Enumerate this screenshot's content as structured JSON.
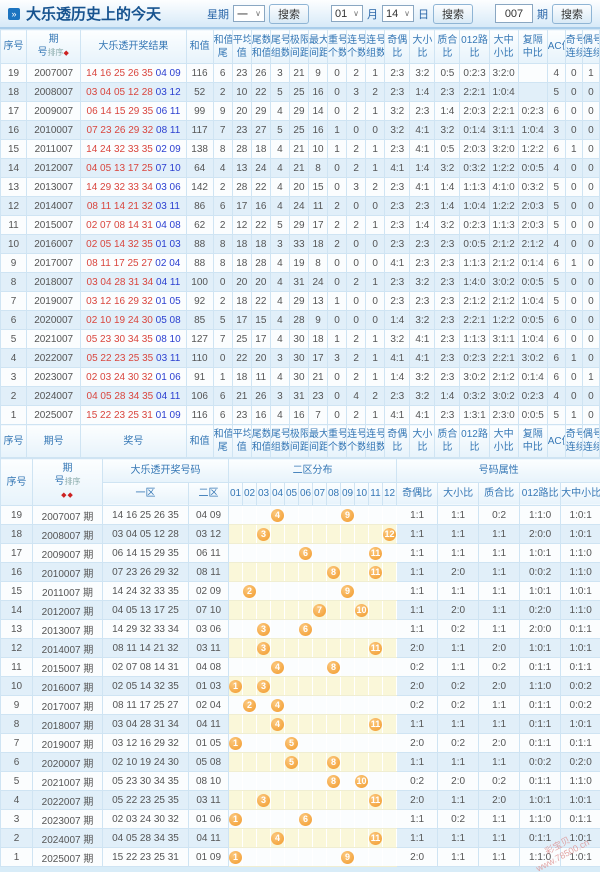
{
  "page": {
    "title": "大乐透历史上的今天",
    "icon": "»"
  },
  "toolbar": {
    "week_label": "星期",
    "week_value": "一",
    "month_value": "01",
    "month_label": "月",
    "day_value": "14",
    "day_label": "日",
    "period_value": "007",
    "period_label": "期",
    "search_label": "搜索",
    "arrow": "∨"
  },
  "table1": {
    "sort_label": "排序",
    "sort_marks": "◆",
    "columns": [
      [
        "序号",
        ""
      ],
      [
        "期",
        "号"
      ],
      [
        "大乐透开奖结果",
        ""
      ],
      [
        "和值",
        ""
      ],
      [
        "和值",
        "尾"
      ],
      [
        "平均",
        "值"
      ],
      [
        "尾数",
        "和值"
      ],
      [
        "尾号",
        "组数"
      ],
      [
        "极限",
        "间距"
      ],
      [
        "最大",
        "间距"
      ],
      [
        "重号",
        "个数"
      ],
      [
        "连号",
        "个数"
      ],
      [
        "连号",
        "组数"
      ],
      [
        "奇偶",
        "比"
      ],
      [
        "大小",
        "比"
      ],
      [
        "质合",
        "比"
      ],
      [
        "012路",
        "比"
      ],
      [
        "大中",
        "小比"
      ],
      [
        "复隔",
        "中比"
      ],
      [
        "AC值",
        ""
      ],
      [
        "奇号",
        "连续"
      ],
      [
        "偶号",
        "连续"
      ]
    ],
    "footer_period_label": "期号",
    "footer_result_label": "奖号",
    "rows": [
      {
        "seq": "19",
        "period": "2007007",
        "front": "14 16 25 26 35",
        "back": "04 09",
        "vals": [
          "116",
          "6",
          "23",
          "26",
          "3",
          "21",
          "9",
          "0",
          "2",
          "1",
          "2:3",
          "3:2",
          "0:5",
          "0:2:3",
          "3:2:0",
          "",
          "4",
          "0",
          "1"
        ]
      },
      {
        "seq": "18",
        "period": "2008007",
        "front": "03 04 05 12 28",
        "back": "03 12",
        "vals": [
          "52",
          "2",
          "10",
          "22",
          "5",
          "25",
          "16",
          "0",
          "3",
          "2",
          "2:3",
          "1:4",
          "2:3",
          "2:2:1",
          "1:0:4",
          "",
          "5",
          "0",
          "0"
        ]
      },
      {
        "seq": "17",
        "period": "2009007",
        "front": "06 14 15 29 35",
        "back": "06 11",
        "vals": [
          "99",
          "9",
          "20",
          "29",
          "4",
          "29",
          "14",
          "0",
          "2",
          "1",
          "3:2",
          "2:3",
          "1:4",
          "2:0:3",
          "2:2:1",
          "0:2:3",
          "6",
          "0",
          "0"
        ]
      },
      {
        "seq": "16",
        "period": "2010007",
        "front": "07 23 26 29 32",
        "back": "08 11",
        "vals": [
          "117",
          "7",
          "23",
          "27",
          "5",
          "25",
          "16",
          "1",
          "0",
          "0",
          "3:2",
          "4:1",
          "3:2",
          "0:1:4",
          "3:1:1",
          "1:0:4",
          "3",
          "0",
          "0"
        ]
      },
      {
        "seq": "15",
        "period": "2011007",
        "front": "14 24 32 33 35",
        "back": "02 09",
        "vals": [
          "138",
          "8",
          "28",
          "18",
          "4",
          "21",
          "10",
          "1",
          "2",
          "1",
          "2:3",
          "4:1",
          "0:5",
          "2:0:3",
          "3:2:0",
          "1:2:2",
          "6",
          "1",
          "0"
        ]
      },
      {
        "seq": "14",
        "period": "2012007",
        "front": "04 05 13 17 25",
        "back": "07 10",
        "vals": [
          "64",
          "4",
          "13",
          "24",
          "4",
          "21",
          "8",
          "0",
          "2",
          "1",
          "4:1",
          "1:4",
          "3:2",
          "0:3:2",
          "1:2:2",
          "0:0:5",
          "4",
          "0",
          "0"
        ]
      },
      {
        "seq": "13",
        "period": "2013007",
        "front": "14 29 32 33 34",
        "back": "03 06",
        "vals": [
          "142",
          "2",
          "28",
          "22",
          "4",
          "20",
          "15",
          "0",
          "3",
          "2",
          "2:3",
          "4:1",
          "1:4",
          "1:1:3",
          "4:1:0",
          "0:3:2",
          "5",
          "0",
          "0"
        ]
      },
      {
        "seq": "12",
        "period": "2014007",
        "front": "08 11 14 21 32",
        "back": "03 11",
        "vals": [
          "86",
          "6",
          "17",
          "16",
          "4",
          "24",
          "11",
          "2",
          "0",
          "0",
          "2:3",
          "2:3",
          "1:4",
          "1:0:4",
          "1:2:2",
          "2:0:3",
          "5",
          "0",
          "0"
        ]
      },
      {
        "seq": "11",
        "period": "2015007",
        "front": "02 07 08 14 31",
        "back": "04 08",
        "vals": [
          "62",
          "2",
          "12",
          "22",
          "5",
          "29",
          "17",
          "2",
          "2",
          "1",
          "2:3",
          "1:4",
          "3:2",
          "0:2:3",
          "1:1:3",
          "2:0:3",
          "5",
          "0",
          "0"
        ]
      },
      {
        "seq": "10",
        "period": "2016007",
        "front": "02 05 14 32 35",
        "back": "01 03",
        "vals": [
          "88",
          "8",
          "18",
          "18",
          "3",
          "33",
          "18",
          "2",
          "0",
          "0",
          "2:3",
          "2:3",
          "2:3",
          "0:0:5",
          "2:1:2",
          "2:1:2",
          "4",
          "0",
          "0"
        ]
      },
      {
        "seq": "9",
        "period": "2017007",
        "front": "08 11 17 25 27",
        "back": "02 04",
        "vals": [
          "88",
          "8",
          "18",
          "28",
          "4",
          "19",
          "8",
          "0",
          "0",
          "0",
          "4:1",
          "2:3",
          "2:3",
          "1:1:3",
          "2:1:2",
          "0:1:4",
          "6",
          "1",
          "0"
        ]
      },
      {
        "seq": "8",
        "period": "2018007",
        "front": "03 04 28 31 34",
        "back": "04 11",
        "vals": [
          "100",
          "0",
          "20",
          "20",
          "4",
          "31",
          "24",
          "0",
          "2",
          "1",
          "2:3",
          "3:2",
          "2:3",
          "1:4:0",
          "3:0:2",
          "0:0:5",
          "5",
          "0",
          "0"
        ]
      },
      {
        "seq": "7",
        "period": "2019007",
        "front": "03 12 16 29 32",
        "back": "01 05",
        "vals": [
          "92",
          "2",
          "18",
          "22",
          "4",
          "29",
          "13",
          "1",
          "0",
          "0",
          "2:3",
          "2:3",
          "2:3",
          "2:1:2",
          "2:1:2",
          "1:0:4",
          "5",
          "0",
          "0"
        ]
      },
      {
        "seq": "6",
        "period": "2020007",
        "front": "02 10 19 24 30",
        "back": "05 08",
        "vals": [
          "85",
          "5",
          "17",
          "15",
          "4",
          "28",
          "9",
          "0",
          "0",
          "0",
          "1:4",
          "3:2",
          "2:3",
          "2:2:1",
          "1:2:2",
          "0:0:5",
          "6",
          "0",
          "0"
        ]
      },
      {
        "seq": "5",
        "period": "2021007",
        "front": "05 23 30 34 35",
        "back": "08 10",
        "vals": [
          "127",
          "7",
          "25",
          "17",
          "4",
          "30",
          "18",
          "1",
          "2",
          "1",
          "3:2",
          "4:1",
          "2:3",
          "1:1:3",
          "3:1:1",
          "1:0:4",
          "6",
          "0",
          "0"
        ]
      },
      {
        "seq": "4",
        "period": "2022007",
        "front": "05 22 23 25 35",
        "back": "03 11",
        "vals": [
          "110",
          "0",
          "22",
          "20",
          "3",
          "30",
          "17",
          "3",
          "2",
          "1",
          "4:1",
          "4:1",
          "2:3",
          "0:2:3",
          "2:2:1",
          "3:0:2",
          "6",
          "1",
          "0"
        ]
      },
      {
        "seq": "3",
        "period": "2023007",
        "front": "02 03 24 30 32",
        "back": "01 06",
        "vals": [
          "91",
          "1",
          "18",
          "11",
          "4",
          "30",
          "21",
          "0",
          "2",
          "1",
          "1:4",
          "3:2",
          "2:3",
          "3:0:2",
          "2:1:2",
          "0:1:4",
          "6",
          "0",
          "1"
        ]
      },
      {
        "seq": "2",
        "period": "2024007",
        "front": "04 05 28 34 35",
        "back": "04 11",
        "vals": [
          "106",
          "6",
          "21",
          "26",
          "3",
          "31",
          "23",
          "0",
          "4",
          "2",
          "2:3",
          "3:2",
          "1:4",
          "0:3:2",
          "3:0:2",
          "0:2:3",
          "4",
          "0",
          "0"
        ]
      },
      {
        "seq": "1",
        "period": "2025007",
        "front": "15 22 23 25 31",
        "back": "01 09",
        "vals": [
          "116",
          "6",
          "23",
          "16",
          "4",
          "16",
          "7",
          "0",
          "2",
          "1",
          "4:1",
          "4:1",
          "2:3",
          "1:3:1",
          "2:3:0",
          "0:0:5",
          "5",
          "1",
          "0"
        ]
      }
    ]
  },
  "table2": {
    "sort_label": "排序",
    "sort_marks": "◆◆",
    "seq_label": "序号",
    "period_l1": "期",
    "period_l2": "号",
    "group_result": "大乐透开奖号码",
    "group_dist": "二区分布",
    "group_attrs": "号码属性",
    "zone1_label": "一区",
    "zone2_label": "二区",
    "dist_cols": [
      "01",
      "02",
      "03",
      "04",
      "05",
      "06",
      "07",
      "08",
      "09",
      "10",
      "11",
      "12"
    ],
    "attr_cols": [
      "奇偶比",
      "大小比",
      "质合比",
      "012路比",
      "大中小比"
    ],
    "rows": [
      {
        "seq": "19",
        "period": "2007007 期",
        "zone1": "14 16 25 26 35",
        "zone2": "04 09",
        "balls": [
          4,
          9
        ],
        "attrs": [
          "1:1",
          "1:1",
          "0:2",
          "1:1:0",
          "1:0:1"
        ]
      },
      {
        "seq": "18",
        "period": "2008007 期",
        "zone1": "03 04 05 12 28",
        "zone2": "03 12",
        "balls": [
          3,
          12
        ],
        "attrs": [
          "1:1",
          "1:1",
          "1:1",
          "2:0:0",
          "1:0:1"
        ]
      },
      {
        "seq": "17",
        "period": "2009007 期",
        "zone1": "06 14 15 29 35",
        "zone2": "06 11",
        "balls": [
          6,
          11
        ],
        "attrs": [
          "1:1",
          "1:1",
          "1:1",
          "1:0:1",
          "1:1:0"
        ]
      },
      {
        "seq": "16",
        "period": "2010007 期",
        "zone1": "07 23 26 29 32",
        "zone2": "08 11",
        "balls": [
          8,
          11
        ],
        "attrs": [
          "1:1",
          "2:0",
          "1:1",
          "0:0:2",
          "1:1:0"
        ]
      },
      {
        "seq": "15",
        "period": "2011007 期",
        "zone1": "14 24 32 33 35",
        "zone2": "02 09",
        "balls": [
          2,
          9
        ],
        "attrs": [
          "1:1",
          "1:1",
          "1:1",
          "1:0:1",
          "1:0:1"
        ]
      },
      {
        "seq": "14",
        "period": "2012007 期",
        "zone1": "04 05 13 17 25",
        "zone2": "07 10",
        "balls": [
          7,
          10
        ],
        "attrs": [
          "1:1",
          "2:0",
          "1:1",
          "0:2:0",
          "1:1:0"
        ]
      },
      {
        "seq": "13",
        "period": "2013007 期",
        "zone1": "14 29 32 33 34",
        "zone2": "03 06",
        "balls": [
          3,
          6
        ],
        "attrs": [
          "1:1",
          "0:2",
          "1:1",
          "2:0:0",
          "0:1:1"
        ]
      },
      {
        "seq": "12",
        "period": "2014007 期",
        "zone1": "08 11 14 21 32",
        "zone2": "03 11",
        "balls": [
          3,
          11
        ],
        "attrs": [
          "2:0",
          "1:1",
          "2:0",
          "1:0:1",
          "1:0:1"
        ]
      },
      {
        "seq": "11",
        "period": "2015007 期",
        "zone1": "02 07 08 14 31",
        "zone2": "04 08",
        "balls": [
          4,
          8
        ],
        "attrs": [
          "0:2",
          "1:1",
          "0:2",
          "0:1:1",
          "0:1:1"
        ]
      },
      {
        "seq": "10",
        "period": "2016007 期",
        "zone1": "02 05 14 32 35",
        "zone2": "01 03",
        "balls": [
          1,
          3
        ],
        "attrs": [
          "2:0",
          "0:2",
          "2:0",
          "1:1:0",
          "0:0:2"
        ]
      },
      {
        "seq": "9",
        "period": "2017007 期",
        "zone1": "08 11 17 25 27",
        "zone2": "02 04",
        "balls": [
          2,
          4
        ],
        "attrs": [
          "0:2",
          "0:2",
          "1:1",
          "0:1:1",
          "0:0:2"
        ]
      },
      {
        "seq": "8",
        "period": "2018007 期",
        "zone1": "03 04 28 31 34",
        "zone2": "04 11",
        "balls": [
          4,
          11
        ],
        "attrs": [
          "1:1",
          "1:1",
          "1:1",
          "0:1:1",
          "1:0:1"
        ]
      },
      {
        "seq": "7",
        "period": "2019007 期",
        "zone1": "03 12 16 29 32",
        "zone2": "01 05",
        "balls": [
          1,
          5
        ],
        "attrs": [
          "2:0",
          "0:2",
          "2:0",
          "0:1:1",
          "0:1:1"
        ]
      },
      {
        "seq": "6",
        "period": "2020007 期",
        "zone1": "02 10 19 24 30",
        "zone2": "05 08",
        "balls": [
          5,
          8
        ],
        "attrs": [
          "1:1",
          "1:1",
          "1:1",
          "0:0:2",
          "0:2:0"
        ]
      },
      {
        "seq": "5",
        "period": "2021007 期",
        "zone1": "05 23 30 34 35",
        "zone2": "08 10",
        "balls": [
          8,
          10
        ],
        "attrs": [
          "0:2",
          "2:0",
          "0:2",
          "0:1:1",
          "1:1:0"
        ]
      },
      {
        "seq": "4",
        "period": "2022007 期",
        "zone1": "05 22 23 25 35",
        "zone2": "03 11",
        "balls": [
          3,
          11
        ],
        "attrs": [
          "2:0",
          "1:1",
          "2:0",
          "1:0:1",
          "1:0:1"
        ]
      },
      {
        "seq": "3",
        "period": "2023007 期",
        "zone1": "02 03 24 30 32",
        "zone2": "01 06",
        "balls": [
          1,
          6
        ],
        "attrs": [
          "1:1",
          "0:2",
          "1:1",
          "1:1:0",
          "0:1:1"
        ]
      },
      {
        "seq": "2",
        "period": "2024007 期",
        "zone1": "04 05 28 34 35",
        "zone2": "04 11",
        "balls": [
          4,
          11
        ],
        "attrs": [
          "1:1",
          "1:1",
          "1:1",
          "0:1:1",
          "1:0:1"
        ]
      },
      {
        "seq": "1",
        "period": "2025007 期",
        "zone1": "15 22 23 25 31",
        "zone2": "01 09",
        "balls": [
          1,
          9
        ],
        "attrs": [
          "2:0",
          "1:1",
          "1:1",
          "1:1:0",
          "1:0:1"
        ]
      }
    ]
  },
  "watermark": {
    "brand": "彩宝贝",
    "url": "www.78500.cn"
  }
}
